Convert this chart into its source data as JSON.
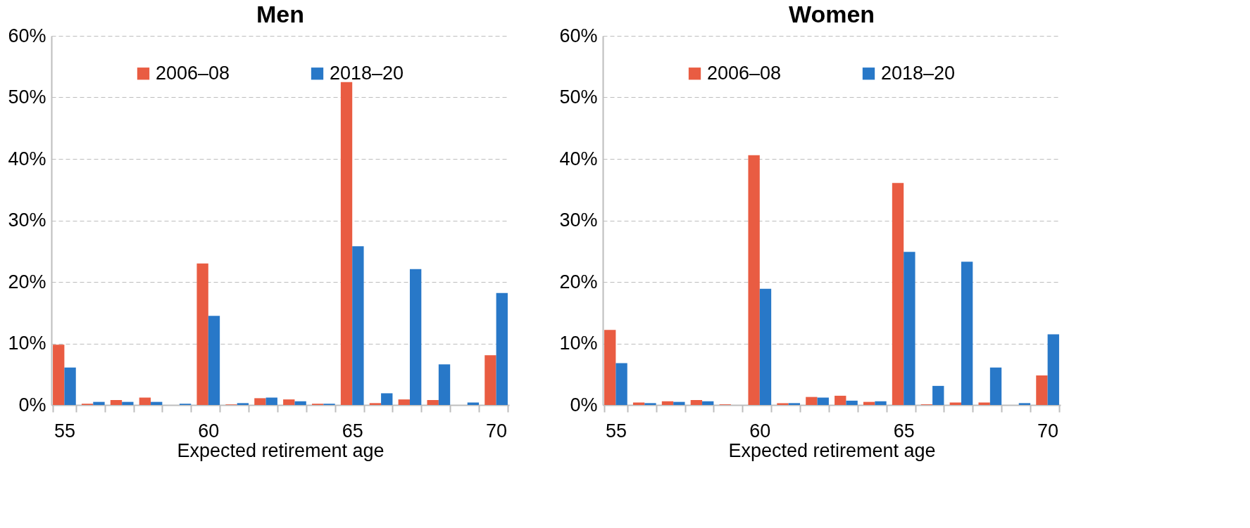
{
  "chart_data": [
    {
      "type": "bar",
      "title": "Men",
      "xlabel": "Expected retirement age",
      "categories": [
        "55",
        null,
        null,
        null,
        null,
        "60",
        null,
        null,
        null,
        null,
        "65",
        null,
        null,
        null,
        null,
        "70"
      ],
      "series": [
        {
          "name": "2006–08",
          "color": "#e95c42",
          "values": [
            9.8,
            0.2,
            0.8,
            1.2,
            0,
            23.0,
            0.1,
            1.1,
            0.9,
            0.2,
            52.5,
            0.3,
            0.9,
            0.8,
            0,
            8.1
          ]
        },
        {
          "name": "2018–20",
          "color": "#2878c8",
          "values": [
            6.1,
            0.5,
            0.5,
            0.5,
            0.2,
            14.5,
            0.3,
            1.2,
            0.6,
            0.2,
            25.8,
            1.9,
            22.1,
            6.6,
            0.4,
            18.2
          ]
        }
      ],
      "ylim": [
        0,
        60
      ],
      "yticks": [
        {
          "value": 0,
          "label": "0%"
        },
        {
          "value": 10,
          "label": "10%"
        },
        {
          "value": 20,
          "label": "20%"
        },
        {
          "value": 30,
          "label": "30%"
        },
        {
          "value": 40,
          "label": "40%"
        },
        {
          "value": 50,
          "label": "50%"
        },
        {
          "value": 60,
          "label": "60%"
        }
      ],
      "grid": "y",
      "legend": "top"
    },
    {
      "type": "bar",
      "title": "Women",
      "xlabel": "Expected retirement age",
      "categories": [
        "55",
        null,
        null,
        null,
        null,
        "60",
        null,
        null,
        null,
        null,
        "65",
        null,
        null,
        null,
        null,
        "70"
      ],
      "series": [
        {
          "name": "2006–08",
          "color": "#e95c42",
          "values": [
            12.2,
            0.4,
            0.6,
            0.8,
            0.1,
            40.6,
            0.3,
            1.3,
            1.5,
            0.5,
            36.1,
            0.1,
            0.4,
            0.4,
            0,
            4.8
          ]
        },
        {
          "name": "2018–20",
          "color": "#2878c8",
          "values": [
            6.8,
            0.3,
            0.5,
            0.6,
            0,
            18.9,
            0.3,
            1.2,
            0.7,
            0.6,
            24.9,
            3.1,
            23.3,
            6.1,
            0.3,
            11.5
          ]
        }
      ],
      "ylim": [
        0,
        60
      ],
      "yticks": [
        {
          "value": 0,
          "label": "0%"
        },
        {
          "value": 10,
          "label": "10%"
        },
        {
          "value": 20,
          "label": "20%"
        },
        {
          "value": 30,
          "label": "30%"
        },
        {
          "value": 40,
          "label": "40%"
        },
        {
          "value": 50,
          "label": "50%"
        },
        {
          "value": 60,
          "label": "60%"
        }
      ],
      "grid": "y",
      "legend": "top"
    }
  ]
}
